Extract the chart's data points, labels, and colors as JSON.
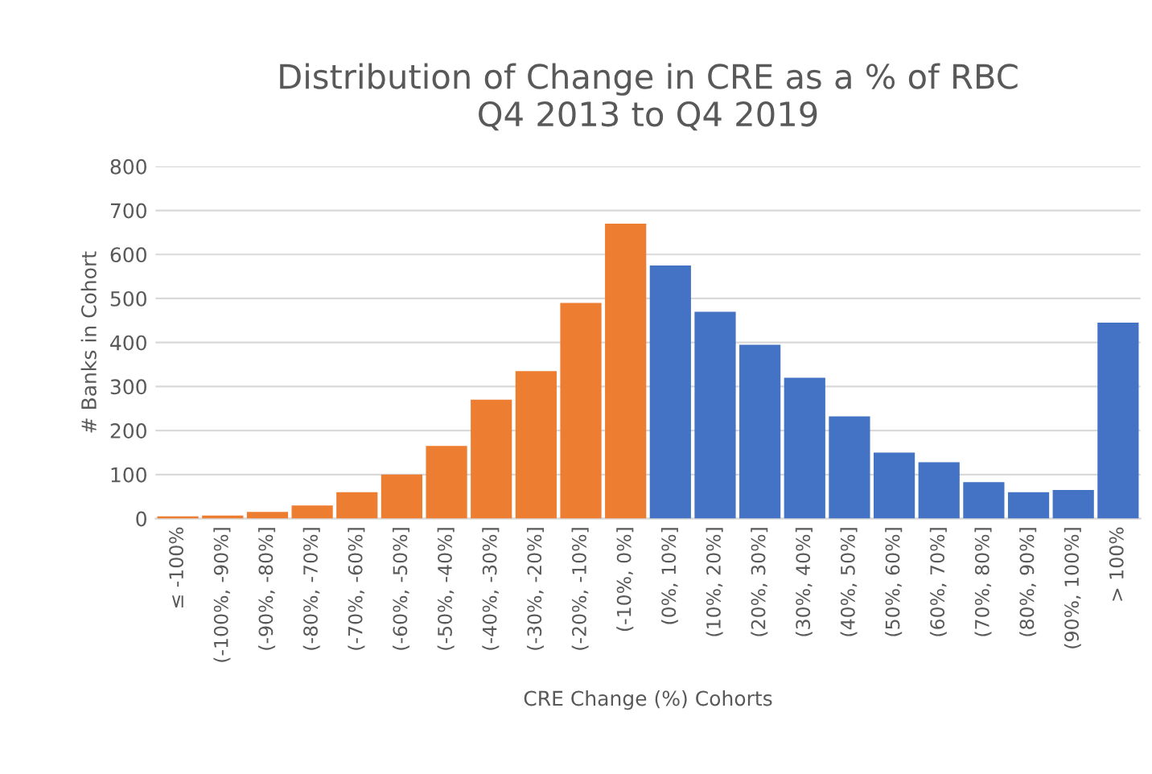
{
  "chart_data": {
    "type": "bar",
    "title": "Distribution of Change in CRE as a % of RBC\nQ4 2013 to Q4 2019",
    "xlabel": "CRE Change (%) Cohorts",
    "ylabel": "# Banks in Cohort",
    "categories": [
      "≤ -100%",
      "(-100%, -90%]",
      "(-90%, -80%]",
      "(-80%, -70%]",
      "(-70%, -60%]",
      "(-60%, -50%]",
      "(-50%, -40%]",
      "(-40%, -30%]",
      "(-30%, -20%]",
      "(-20%, -10%]",
      "(-10%, 0%]",
      "(0%, 10%]",
      "(10%, 20%]",
      "(20%, 30%]",
      "(30%, 40%]",
      "(40%, 50%]",
      "(50%, 60%]",
      "(60%, 70%]",
      "(70%, 80%]",
      "(80%, 90%]",
      "(90%, 100%]",
      "> 100%"
    ],
    "values": [
      5,
      7,
      15,
      30,
      60,
      100,
      165,
      270,
      335,
      490,
      670,
      575,
      470,
      395,
      320,
      232,
      150,
      128,
      83,
      60,
      65,
      445
    ],
    "colors": [
      "#ed7d31",
      "#ed7d31",
      "#ed7d31",
      "#ed7d31",
      "#ed7d31",
      "#ed7d31",
      "#ed7d31",
      "#ed7d31",
      "#ed7d31",
      "#ed7d31",
      "#ed7d31",
      "#4472c4",
      "#4472c4",
      "#4472c4",
      "#4472c4",
      "#4472c4",
      "#4472c4",
      "#4472c4",
      "#4472c4",
      "#4472c4",
      "#4472c4",
      "#4472c4"
    ],
    "ylim": [
      0,
      800
    ],
    "yticks": [
      0,
      100,
      200,
      300,
      400,
      500,
      600,
      700,
      800
    ],
    "grid": "y"
  }
}
